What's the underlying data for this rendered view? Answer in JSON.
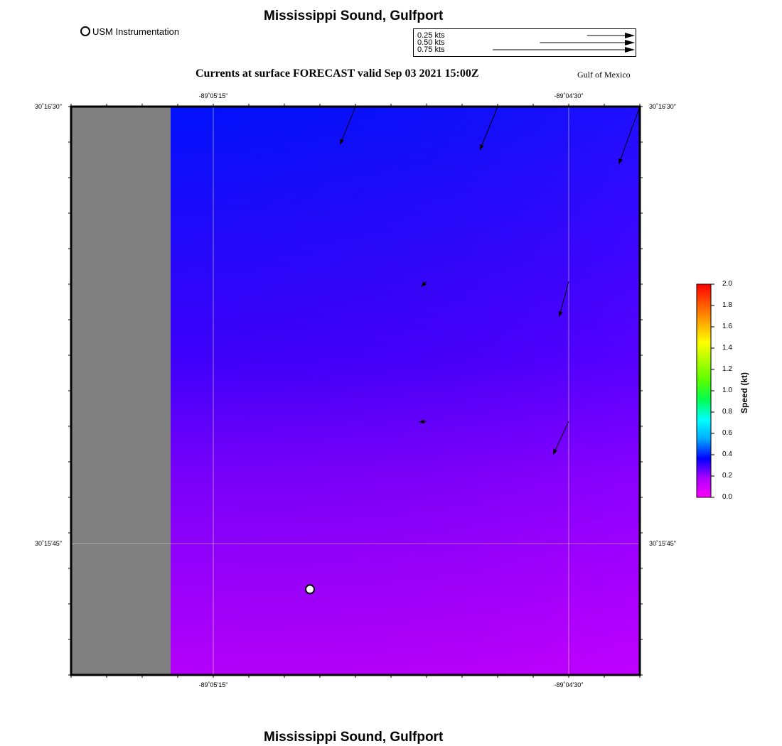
{
  "header": {
    "title": "Mississippi Sound, Gulfport",
    "forecast_title": "Currents at surface FORECAST valid Sep 03 2021 15:00Z",
    "region": "Gulf of Mexico"
  },
  "footer": {
    "title": "Mississippi Sound, Gulfport"
  },
  "legend": {
    "station_label": "USM Instrumentation"
  },
  "vector_key": {
    "items": [
      {
        "label": "0.25 kts",
        "speed": 0.25
      },
      {
        "label": "0.50 kts",
        "speed": 0.5
      },
      {
        "label": "0.75 kts",
        "speed": 0.75
      }
    ]
  },
  "map": {
    "lon_range": [
      -89.0925,
      -89.0725
    ],
    "lat_range": [
      30.25875,
      30.275
    ],
    "lon_ticks": [
      {
        "lon": -89.0875,
        "label": "-89˚05'15\""
      },
      {
        "lon": -89.075,
        "label": "-89˚04'30\""
      }
    ],
    "lat_ticks": [
      {
        "lat": 30.275,
        "label": "30˚16'30\""
      },
      {
        "lat": 30.2625,
        "label": "30˚15'45\""
      }
    ],
    "land_lon_max": -89.089,
    "station": {
      "name": "USM Instrumentation",
      "lon": -89.0841,
      "lat": 30.2612
    },
    "vectors": [
      {
        "lon": -89.0825,
        "lat": 30.275,
        "speed": 0.28,
        "dir_deg": 202
      },
      {
        "lon": -89.0775,
        "lat": 30.275,
        "speed": 0.32,
        "dir_deg": 202
      },
      {
        "lon": -89.0725,
        "lat": 30.275,
        "speed": 0.42,
        "dir_deg": 200
      },
      {
        "lon": -89.08,
        "lat": 30.27,
        "speed": 0.02,
        "dir_deg": 225
      },
      {
        "lon": -89.075,
        "lat": 30.27,
        "speed": 0.25,
        "dir_deg": 195
      },
      {
        "lon": -89.08,
        "lat": 30.266,
        "speed": 0.02,
        "dir_deg": 265
      },
      {
        "lon": -89.075,
        "lat": 30.266,
        "speed": 0.25,
        "dir_deg": 205
      }
    ],
    "speed_field": {
      "top_speed_kt": 0.42,
      "bottom_speed_kt": 0.05
    }
  },
  "colorbar": {
    "title": "Speed (kt)",
    "min": 0.0,
    "max": 2.0,
    "ticks": [
      "0.0",
      "0.2",
      "0.4",
      "0.6",
      "0.8",
      "1.0",
      "1.2",
      "1.4",
      "1.6",
      "1.8",
      "2.0"
    ],
    "colors": [
      "#ff00ff",
      "#aa00ff",
      "#0000ff",
      "#00aaff",
      "#00ffff",
      "#00ff55",
      "#55ff00",
      "#aaff00",
      "#ffff00",
      "#ffaa00",
      "#ff5500",
      "#ff0000"
    ]
  }
}
